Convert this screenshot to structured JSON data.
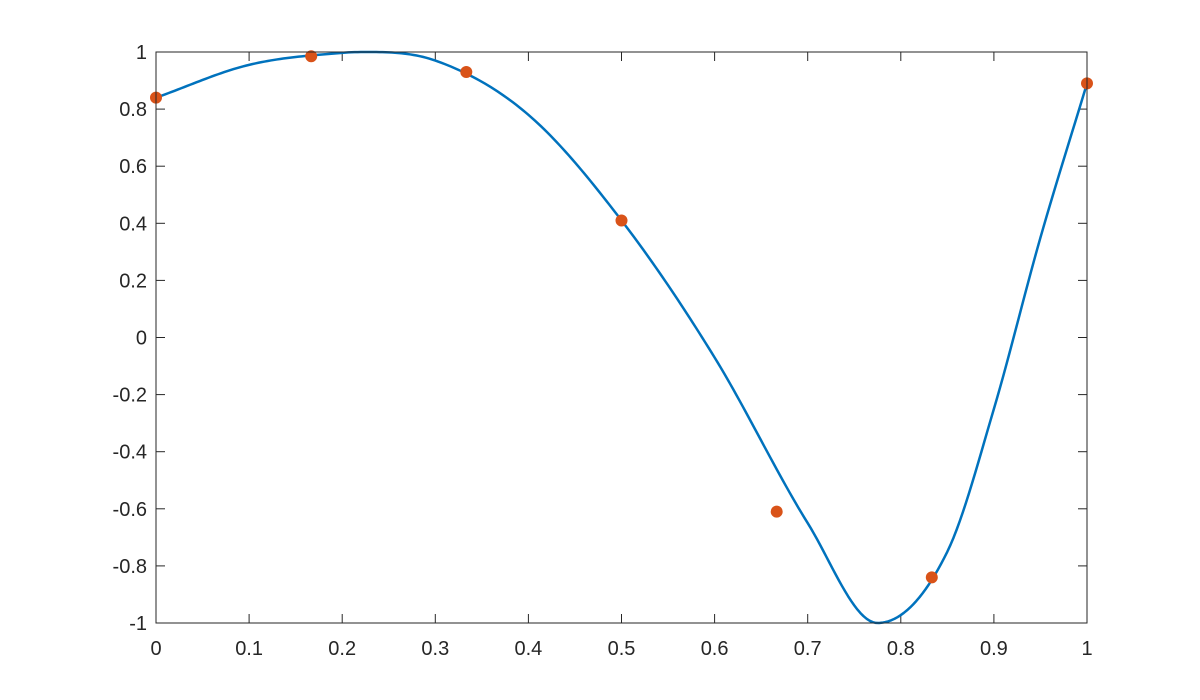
{
  "chart_data": {
    "type": "line",
    "title": "",
    "xlabel": "",
    "ylabel": "",
    "xlim": [
      0,
      1
    ],
    "ylim": [
      -1,
      1
    ],
    "grid": false,
    "x_ticks": [
      "0",
      "0.1",
      "0.2",
      "0.3",
      "0.4",
      "0.5",
      "0.6",
      "0.7",
      "0.8",
      "0.9",
      "1"
    ],
    "y_ticks": [
      "1",
      "0.8",
      "0.6",
      "0.4",
      "0.2",
      "0",
      "-0.2",
      "-0.4",
      "-0.6",
      "-0.8",
      "-1"
    ],
    "series": [
      {
        "style": "line",
        "color": "#0072BD",
        "x": [
          0,
          0.1,
          0.2,
          0.225,
          0.3,
          0.4,
          0.5,
          0.6,
          0.7,
          0.775,
          0.85,
          0.9,
          0.95,
          1
        ],
        "y": [
          0.84,
          0.955,
          0.997,
          1.0,
          0.97,
          0.78,
          0.41,
          -0.07,
          -0.65,
          -1.0,
          -0.75,
          -0.25,
          0.35,
          0.89
        ]
      },
      {
        "style": "markers",
        "color": "#D95319",
        "x": [
          0,
          0.1667,
          0.3333,
          0.5,
          0.6667,
          0.8333,
          1
        ],
        "y": [
          0.84,
          0.985,
          0.93,
          0.41,
          -0.61,
          -0.84,
          0.89
        ]
      }
    ]
  }
}
